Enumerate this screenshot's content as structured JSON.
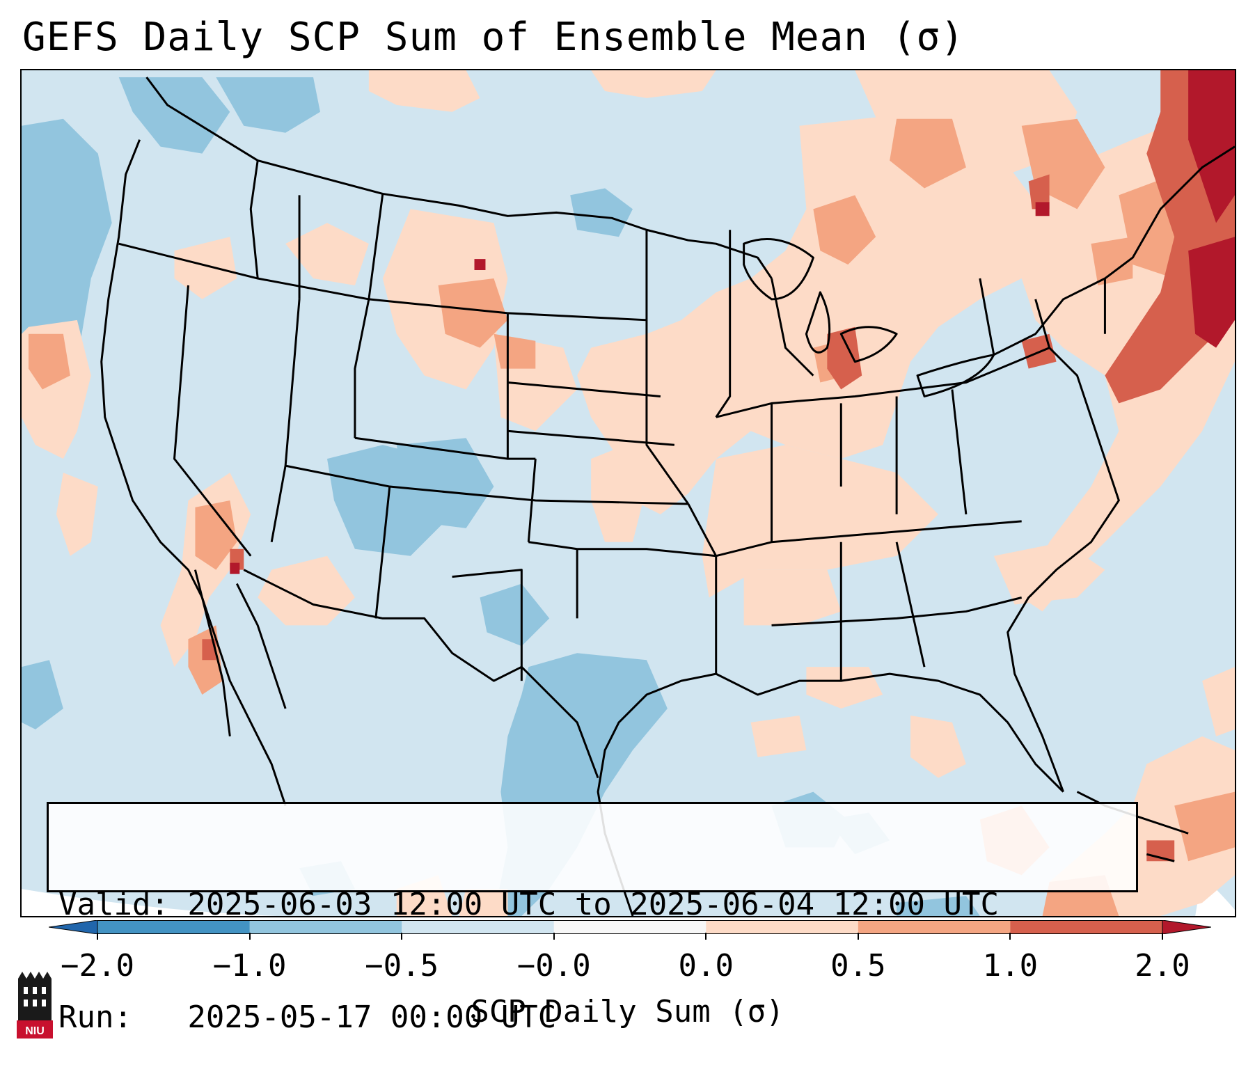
{
  "title": "GEFS Daily SCP Sum of Ensemble Mean (σ)",
  "info": {
    "valid_line": "Valid: 2025-06-03 12:00 UTC to 2025-06-04 12:00 UTC",
    "run_line": "Run:   2025-05-17 00:00 UTC"
  },
  "colorbar": {
    "title": "SCP Daily Sum (σ)",
    "tick_labels": [
      "−2.0",
      "−1.0",
      "−0.5",
      "−0.0",
      "0.0",
      "0.5",
      "1.0",
      "2.0"
    ],
    "bins": [
      {
        "range": "< -2.0",
        "color": "#2166ac"
      },
      {
        "range": "-2.0 to -1.0",
        "color": "#4393c3"
      },
      {
        "range": "-1.0 to -0.5",
        "color": "#92c5de"
      },
      {
        "range": "-0.5 to -0.0",
        "color": "#d1e5f0"
      },
      {
        "range": "-0.0 to 0.0",
        "color": "#f7f7f7"
      },
      {
        "range": "0.0 to 0.5",
        "color": "#fddbc7"
      },
      {
        "range": "0.5 to 1.0",
        "color": "#f4a582"
      },
      {
        "range": "1.0 to 2.0",
        "color": "#d6604d"
      },
      {
        "range": "> 2.0",
        "color": "#b2182b"
      }
    ]
  },
  "map": {
    "region": "Contiguous United States",
    "background_color": "#d1e5f0"
  },
  "logo": {
    "text": "NIU",
    "color": "#c8102e"
  }
}
